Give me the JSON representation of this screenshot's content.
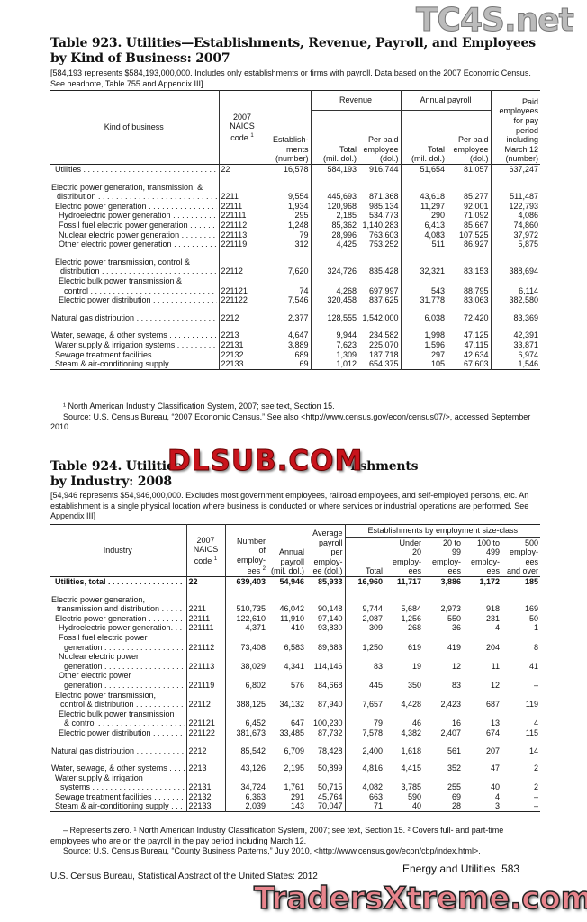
{
  "watermarks": {
    "top_right": "TC4S.net",
    "middle": "DLSUB.COM",
    "bottom": "TradersXtreme.com"
  },
  "table923": {
    "title_line1": "Table 923. Utilities—Establishments, Revenue, Payroll, and Employees",
    "title_line2": "by Kind of Business: 2007",
    "headnote": "[584,193 represents $584,193,000,000. Includes only establishments or firms with payroll. Data based on the 2007 Economic Census. See headnote, Table 755 and Appendix III]",
    "headers": {
      "kind": "Kind of business",
      "naics": [
        "2007",
        "NAICS",
        "code"
      ],
      "naics_sup": "1",
      "estab": [
        "Establish-",
        "ments",
        "(number)"
      ],
      "revenue": "Revenue",
      "payroll": "Annual payroll",
      "rev_total": [
        "Total",
        "(mil. dol.)"
      ],
      "rev_per": [
        "Per paid",
        "employee",
        "(dol.)"
      ],
      "pay_total": [
        "Total",
        "(mil. dol.)"
      ],
      "pay_per": [
        "Per paid",
        "employee",
        "(dol.)"
      ],
      "paid_emp": [
        "Paid",
        "employees",
        "for pay",
        "period",
        "including",
        "March 12",
        "(number)"
      ]
    },
    "rows": [
      {
        "lines": [
          "Utilities"
        ],
        "indent": 1,
        "code": "22",
        "values": [
          "16,578",
          "584,193",
          "916,744",
          "51,654",
          "81,057",
          "637,247"
        ]
      },
      {
        "blank": true
      },
      {
        "lines": [
          "Electric power generation, transmission, &",
          "distribution"
        ],
        "indent": 0,
        "code": "2211",
        "values": [
          "9,554",
          "445,693",
          "871,368",
          "43,618",
          "85,277",
          "511,487"
        ]
      },
      {
        "lines": [
          "Electric power generation"
        ],
        "indent": 1,
        "code": "22111",
        "values": [
          "1,934",
          "120,968",
          "985,134",
          "11,297",
          "92,001",
          "122,793"
        ]
      },
      {
        "lines": [
          "Hydroelectric power generation"
        ],
        "indent": 2,
        "code": "221111",
        "values": [
          "295",
          "2,185",
          "534,773",
          "290",
          "71,092",
          "4,086"
        ]
      },
      {
        "lines": [
          "Fossil fuel electric power generation"
        ],
        "indent": 2,
        "code": "221112",
        "values": [
          "1,248",
          "85,362",
          "1,140,283",
          "6,413",
          "85,667",
          "74,860"
        ]
      },
      {
        "lines": [
          "Nuclear electric power generation"
        ],
        "indent": 2,
        "code": "221113",
        "values": [
          "79",
          "28,996",
          "763,603",
          "4,083",
          "107,525",
          "37,972"
        ]
      },
      {
        "lines": [
          "Other electric power generation"
        ],
        "indent": 2,
        "code": "221119",
        "values": [
          "312",
          "4,425",
          "753,252",
          "511",
          "86,927",
          "5,875"
        ]
      },
      {
        "blank": true
      },
      {
        "lines": [
          "Electric power transmission, control &",
          "distribution"
        ],
        "indent": 1,
        "code": "22112",
        "values": [
          "7,620",
          "324,726",
          "835,428",
          "32,321",
          "83,153",
          "388,694"
        ]
      },
      {
        "lines": [
          "Electric bulk power transmission &",
          "control"
        ],
        "indent": 2,
        "code": "221121",
        "values": [
          "74",
          "4,268",
          "697,997",
          "543",
          "88,795",
          "6,114"
        ]
      },
      {
        "lines": [
          "Electric power distribution"
        ],
        "indent": 2,
        "code": "221122",
        "values": [
          "7,546",
          "320,458",
          "837,625",
          "31,778",
          "83,063",
          "382,580"
        ]
      },
      {
        "blank": true
      },
      {
        "lines": [
          "Natural gas distribution"
        ],
        "indent": 0,
        "code": "2212",
        "values": [
          "2,377",
          "128,555",
          "1,542,000",
          "6,038",
          "72,420",
          "83,369"
        ]
      },
      {
        "blank": true
      },
      {
        "lines": [
          "Water, sewage, & other systems"
        ],
        "indent": 0,
        "code": "2213",
        "values": [
          "4,647",
          "9,944",
          "234,582",
          "1,998",
          "47,125",
          "42,391"
        ]
      },
      {
        "lines": [
          "Water supply & irrigation systems"
        ],
        "indent": 1,
        "code": "22131",
        "values": [
          "3,889",
          "7,623",
          "225,070",
          "1,596",
          "47,115",
          "33,871"
        ]
      },
      {
        "lines": [
          "Sewage treatment facilities"
        ],
        "indent": 1,
        "code": "22132",
        "values": [
          "689",
          "1,309",
          "187,718",
          "297",
          "42,634",
          "6,974"
        ]
      },
      {
        "lines": [
          "Steam & air-conditioning supply"
        ],
        "indent": 1,
        "code": "22133",
        "values": [
          "69",
          "1,012",
          "654,375",
          "105",
          "67,603",
          "1,546"
        ]
      }
    ],
    "footnotes": [
      "¹ North American Industry Classification System, 2007; see text, Section 15.",
      "Source: U.S. Census Bureau, “2007 Economic Census.” See also <http://www.census.gov/econ/census07/>, accessed September 2010."
    ]
  },
  "table924": {
    "title_line1a": "Table 924. Utilities",
    "title_line1b": "lishments",
    "title_line2": "by Industry: 2008",
    "headnote": "[54,946 represents $54,946,000,000. Excludes most government employees, railroad employees, and self-employed persons, etc. An establishment is a single physical location where business is conducted or where services or industrial operations are performed. See Appendix III]",
    "headers": {
      "industry": "Industry",
      "naics": [
        "2007",
        "NAICS",
        "code"
      ],
      "naics_sup": "1",
      "employees": [
        "Number",
        "of",
        "employ-",
        "ees"
      ],
      "employees_sup": "2",
      "payroll": [
        "Annual",
        "payroll",
        "(mil. dol.)"
      ],
      "avg": [
        "Average",
        "payroll",
        "per",
        "employ-",
        "ee (dol.)"
      ],
      "size_class": "Establishments by employment size-class",
      "total": "Total",
      "under20": [
        "Under",
        "20",
        "employ-",
        "ees"
      ],
      "c20_99": [
        "20 to",
        "99",
        "employ-",
        "ees"
      ],
      "c100_499": [
        "100 to",
        "499",
        "employ-",
        "ees"
      ],
      "c500": [
        "500",
        "employ-",
        "ees",
        "and over"
      ]
    },
    "rows": [
      {
        "lines": [
          "Utilities, total"
        ],
        "indent": 1,
        "bold": true,
        "code": "22",
        "values": [
          "639,403",
          "54,946",
          "85,933",
          "16,960",
          "11,717",
          "3,886",
          "1,172",
          "185"
        ]
      },
      {
        "blank": true
      },
      {
        "lines": [
          "Electric power generation,",
          "transmission and distribution"
        ],
        "indent": 0,
        "code": "2211",
        "values": [
          "510,735",
          "46,042",
          "90,148",
          "9,744",
          "5,684",
          "2,973",
          "918",
          "169"
        ]
      },
      {
        "lines": [
          "Electric power generation"
        ],
        "indent": 1,
        "code": "22111",
        "values": [
          "122,610",
          "11,910",
          "97,140",
          "2,087",
          "1,256",
          "550",
          "231",
          "50"
        ]
      },
      {
        "lines": [
          "Hydroelectric power generation."
        ],
        "indent": 2,
        "code": "221111",
        "values": [
          "4,371",
          "410",
          "93,830",
          "309",
          "268",
          "36",
          "4",
          "1"
        ]
      },
      {
        "lines": [
          "Fossil fuel electric power",
          "generation"
        ],
        "indent": 2,
        "code": "221112",
        "values": [
          "73,408",
          "6,583",
          "89,683",
          "1,250",
          "619",
          "419",
          "204",
          "8"
        ]
      },
      {
        "lines": [
          "Nuclear electric power",
          "generation"
        ],
        "indent": 2,
        "code": "221113",
        "values": [
          "38,029",
          "4,341",
          "114,146",
          "83",
          "19",
          "12",
          "11",
          "41"
        ]
      },
      {
        "lines": [
          "Other electric power",
          "generation"
        ],
        "indent": 2,
        "code": "221119",
        "values": [
          "6,802",
          "576",
          "84,668",
          "445",
          "350",
          "83",
          "12",
          "–"
        ]
      },
      {
        "lines": [
          "Electric power transmission,",
          "control & distribution"
        ],
        "indent": 1,
        "code": "22112",
        "values": [
          "388,125",
          "34,132",
          "87,940",
          "7,657",
          "4,428",
          "2,423",
          "687",
          "119"
        ]
      },
      {
        "lines": [
          "Electric bulk power transmission",
          "& control"
        ],
        "indent": 2,
        "code": "221121",
        "values": [
          "6,452",
          "647",
          "100,230",
          "79",
          "46",
          "16",
          "13",
          "4"
        ]
      },
      {
        "lines": [
          "Electric power distribution"
        ],
        "indent": 2,
        "code": "221122",
        "values": [
          "381,673",
          "33,485",
          "87,732",
          "7,578",
          "4,382",
          "2,407",
          "674",
          "115"
        ]
      },
      {
        "blank": true
      },
      {
        "lines": [
          "Natural gas distribution"
        ],
        "indent": 0,
        "code": "2212",
        "values": [
          "85,542",
          "6,709",
          "78,428",
          "2,400",
          "1,618",
          "561",
          "207",
          "14"
        ]
      },
      {
        "blank": true
      },
      {
        "lines": [
          "Water, sewage, & other systems"
        ],
        "indent": 0,
        "code": "2213",
        "values": [
          "43,126",
          "2,195",
          "50,899",
          "4,816",
          "4,415",
          "352",
          "47",
          "2"
        ]
      },
      {
        "lines": [
          "Water supply & irrigation",
          "systems"
        ],
        "indent": 1,
        "code": "22131",
        "values": [
          "34,724",
          "1,761",
          "50,715",
          "4,082",
          "3,785",
          "255",
          "40",
          "2"
        ]
      },
      {
        "lines": [
          "Sewage treatment facilities"
        ],
        "indent": 1,
        "code": "22132",
        "values": [
          "6,363",
          "291",
          "45,764",
          "663",
          "590",
          "69",
          "4",
          "–"
        ]
      },
      {
        "lines": [
          "Steam & air-conditioning supply"
        ],
        "indent": 1,
        "code": "22133",
        "values": [
          "2,039",
          "143",
          "70,047",
          "71",
          "40",
          "28",
          "3",
          "–"
        ]
      }
    ],
    "footnotes": [
      "– Represents zero. ¹ North American Industry Classification System, 2007; see text, Section 15. ² Covers full- and part-time employees who are on the payroll in the pay period including March 12.",
      "Source: U.S. Census Bureau, “County Business Patterns,” July 2010, <http://www.census.gov/econ/cbp/index.html>."
    ]
  },
  "page": {
    "section": "Energy and Utilities",
    "number": "583",
    "publication": "U.S. Census Bureau, Statistical Abstract of the United States: 2012"
  }
}
